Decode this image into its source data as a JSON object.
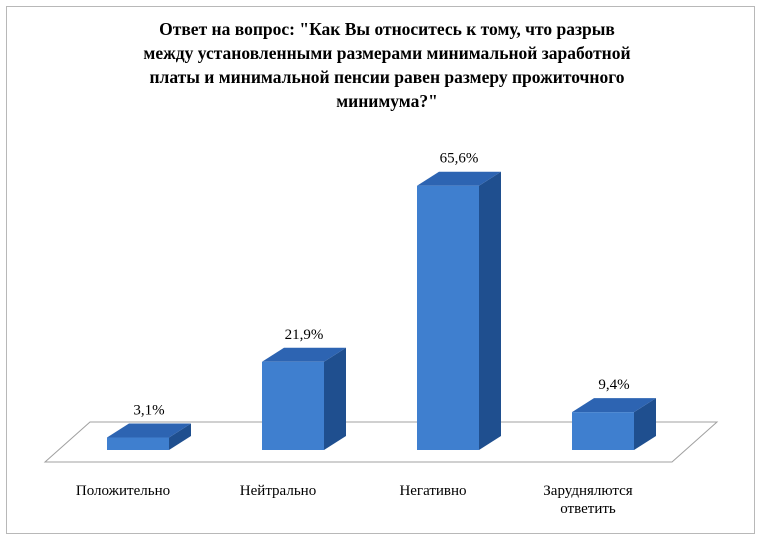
{
  "chart_data": {
    "type": "bar",
    "title": "Ответ на вопрос: \"Как Вы относитесь к тому, что разрыв\nмежду установленными размерами минимальной заработной\nплаты и минимальной пенсии равен размеру прожиточного\nминимума?\"",
    "categories": [
      "Положительно",
      "Нейтрально",
      "Негативно",
      "Заруднялются ответить"
    ],
    "category_lines": [
      [
        "Положительно"
      ],
      [
        "Нейтрально"
      ],
      [
        "Негативно"
      ],
      [
        "Заруднялются",
        "ответить"
      ]
    ],
    "values": [
      3.1,
      21.9,
      65.6,
      9.4
    ],
    "data_labels": [
      "3,1%",
      "21,9%",
      "65,6%",
      "9,4%"
    ],
    "ylim": [
      0,
      70
    ],
    "grid": false,
    "legend": "none",
    "style": "3d-column",
    "colors": {
      "bar_front": "#3f7fcf",
      "bar_side": "#1f4f8f",
      "bar_top": "#2d64b2"
    }
  }
}
